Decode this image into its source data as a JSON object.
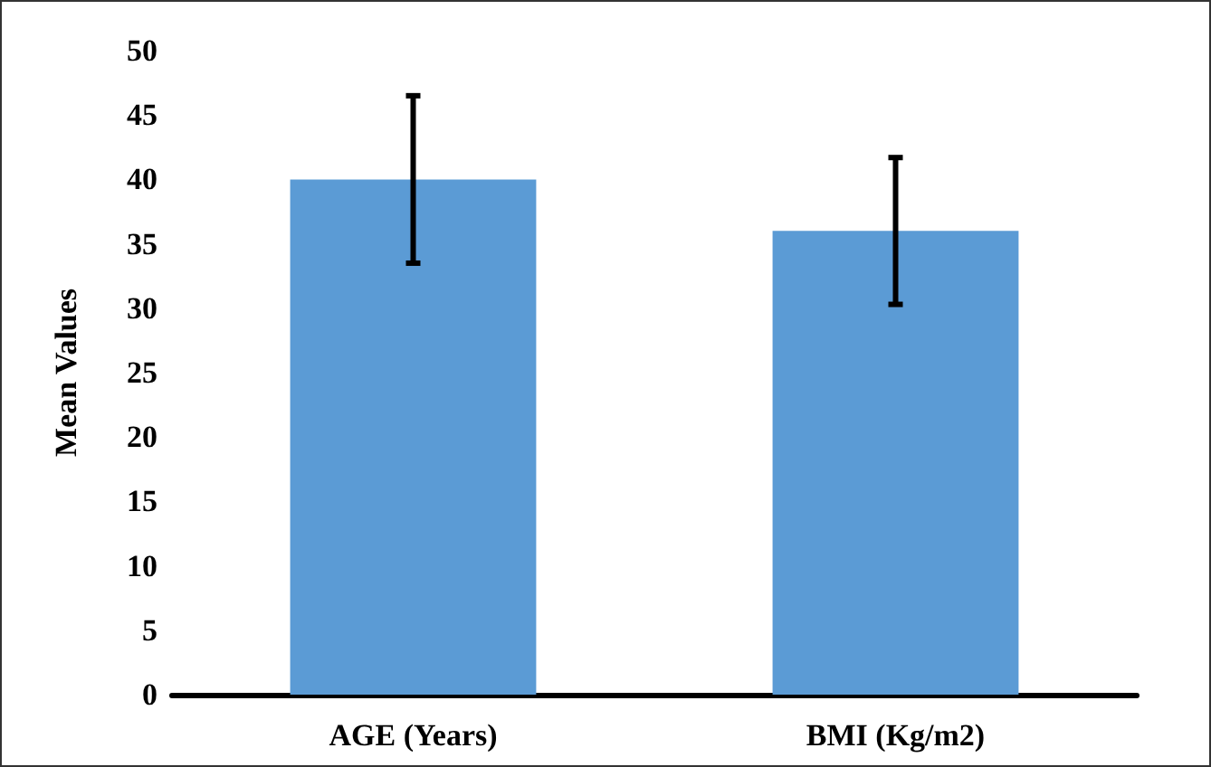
{
  "chart_data": {
    "type": "bar",
    "ylabel": "Mean Values",
    "categories": [
      "AGE (Years)",
      "BMI (Kg/m2)"
    ],
    "values": [
      40,
      36
    ],
    "errors": [
      6.5,
      5.7
    ],
    "color": "#5b9bd5",
    "ylim": [
      0,
      50
    ],
    "yticks": [
      0,
      5,
      10,
      15,
      20,
      25,
      30,
      35,
      40,
      45,
      50
    ],
    "grid": false
  }
}
